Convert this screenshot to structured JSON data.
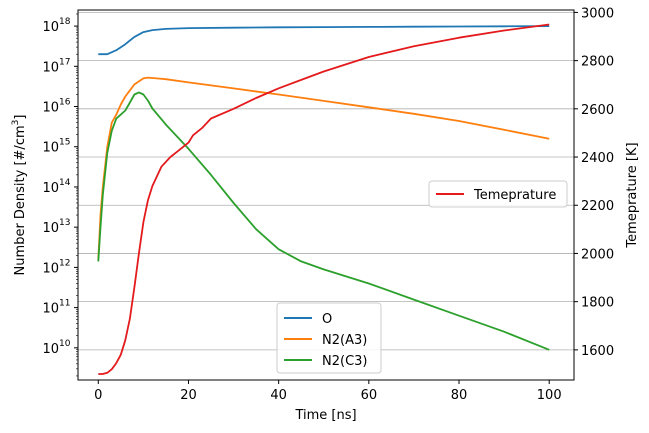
{
  "chart_data": {
    "type": "line",
    "xlabel": "Time [ns]",
    "ylabel_left_parts": [
      "Number Density [#/cm",
      "3",
      "]"
    ],
    "ylabel_right": "Temeprature [K]",
    "xlim": [
      -4.5,
      105.5
    ],
    "ylim_left_log10": [
      9.2,
      18.4
    ],
    "ylim_left_scale": "log",
    "ylim_right": [
      1475,
      3010
    ],
    "x_ticks": [
      0,
      20,
      40,
      60,
      80,
      100
    ],
    "y_left_ticks": [
      {
        "base": "10",
        "exp": "10",
        "value": 10
      },
      {
        "base": "10",
        "exp": "11",
        "value": 11
      },
      {
        "base": "10",
        "exp": "12",
        "value": 12
      },
      {
        "base": "10",
        "exp": "13",
        "value": 13
      },
      {
        "base": "10",
        "exp": "14",
        "value": 14
      },
      {
        "base": "10",
        "exp": "15",
        "value": 15
      },
      {
        "base": "10",
        "exp": "16",
        "value": 16
      },
      {
        "base": "10",
        "exp": "17",
        "value": 17
      },
      {
        "base": "10",
        "exp": "18",
        "value": 18
      }
    ],
    "y_right_ticks": [
      1600,
      1800,
      2000,
      2200,
      2400,
      2600,
      2800,
      3000
    ],
    "grid": "horizontal lines at right-axis ticks",
    "legend_left": {
      "placement": "lower-center",
      "entries": [
        "O",
        "N2(A3)",
        "N2(C3)"
      ]
    },
    "legend_right": {
      "placement": "center-right",
      "entries": [
        "Temeprature"
      ]
    },
    "series": [
      {
        "name": "O",
        "axis": "left",
        "color": "#1f77b4",
        "scale": "log10",
        "x": [
          0,
          2,
          4,
          6,
          8,
          10,
          12,
          15,
          20,
          30,
          40,
          50,
          60,
          70,
          80,
          90,
          100
        ],
        "y_log10": [
          17.3,
          17.3,
          17.4,
          17.55,
          17.73,
          17.85,
          17.9,
          17.93,
          17.95,
          17.96,
          17.97,
          17.975,
          17.98,
          17.985,
          17.99,
          17.995,
          18.0
        ]
      },
      {
        "name": "N2(A3)",
        "axis": "left",
        "color": "#ff7f0e",
        "scale": "log10",
        "x": [
          0,
          0.5,
          1,
          2,
          3,
          4,
          5,
          6,
          8,
          10,
          11,
          13,
          15,
          20,
          30,
          40,
          50,
          60,
          70,
          80,
          90,
          100
        ],
        "y_log10": [
          12.2,
          13.3,
          14.0,
          15.0,
          15.6,
          15.8,
          16.05,
          16.25,
          16.55,
          16.7,
          16.72,
          16.7,
          16.68,
          16.6,
          16.45,
          16.3,
          16.14,
          15.98,
          15.82,
          15.64,
          15.42,
          15.2
        ]
      },
      {
        "name": "N2(C3)",
        "axis": "left",
        "color": "#2ca02c",
        "scale": "log10",
        "x": [
          0,
          0.5,
          1,
          2,
          3,
          4,
          5,
          6,
          7,
          8,
          9,
          10,
          11,
          12,
          15,
          20,
          25,
          30,
          35,
          40,
          45,
          50,
          60,
          70,
          80,
          90,
          100
        ],
        "y_log10": [
          12.15,
          13.0,
          13.8,
          14.85,
          15.4,
          15.7,
          15.8,
          15.9,
          16.1,
          16.3,
          16.35,
          16.3,
          16.15,
          15.95,
          15.55,
          14.95,
          14.3,
          13.6,
          12.95,
          12.45,
          12.15,
          11.95,
          11.6,
          11.2,
          10.8,
          10.4,
          9.95
        ]
      },
      {
        "name": "Temeprature",
        "axis": "right",
        "color": "#e41a1c",
        "scale": "linear",
        "x": [
          0,
          1,
          2,
          3,
          4,
          5,
          6,
          7,
          8,
          9,
          10,
          11,
          12,
          14,
          16,
          18,
          20,
          21,
          23,
          25,
          30,
          35,
          40,
          45,
          50,
          60,
          70,
          80,
          90,
          100
        ],
        "y": [
          1500,
          1500,
          1505,
          1520,
          1545,
          1580,
          1640,
          1730,
          1860,
          2000,
          2130,
          2220,
          2280,
          2360,
          2400,
          2430,
          2460,
          2490,
          2520,
          2560,
          2600,
          2645,
          2685,
          2720,
          2755,
          2815,
          2860,
          2895,
          2925,
          2950
        ]
      }
    ]
  }
}
